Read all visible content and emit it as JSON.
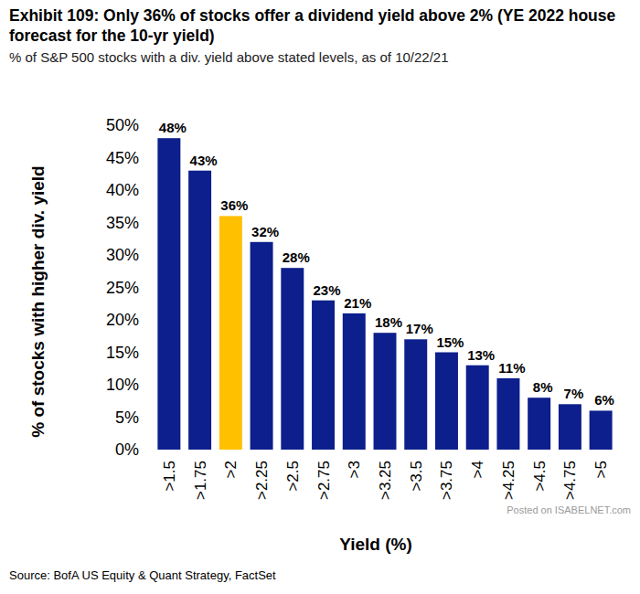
{
  "chart_data": {
    "type": "bar",
    "title": "Exhibit 109: Only 36% of stocks offer a dividend yield above 2% (YE 2022 house forecast for the 10-yr yield)",
    "subtitle": "% of S&P 500 stocks with a div. yield above stated levels, as of 10/22/21",
    "y_label": "% of stocks with higher div. yield",
    "x_label": "Yield (%)",
    "source": "Source: BofA US Equity & Quant Strategy, FactSet",
    "watermark": "Posted on ISABELNET.com",
    "categories": [
      ">1.5",
      ">1.75",
      ">2",
      ">2.25",
      ">2.5",
      ">2.75",
      ">3",
      ">3.25",
      ">3.5",
      ">3.75",
      ">4",
      ">4.25",
      ">4.5",
      ">4.75",
      ">5"
    ],
    "values": [
      48,
      43,
      36,
      32,
      28,
      23,
      21,
      18,
      17,
      15,
      13,
      11,
      8,
      7,
      6
    ],
    "value_labels": [
      "48%",
      "43%",
      "36%",
      "32%",
      "28%",
      "23%",
      "21%",
      "18%",
      "17%",
      "15%",
      "13%",
      "11%",
      "8%",
      "7%",
      "6%"
    ],
    "colors": [
      "#0c1f8c",
      "#0c1f8c",
      "#ffc000",
      "#0c1f8c",
      "#0c1f8c",
      "#0c1f8c",
      "#0c1f8c",
      "#0c1f8c",
      "#0c1f8c",
      "#0c1f8c",
      "#0c1f8c",
      "#0c1f8c",
      "#0c1f8c",
      "#0c1f8c",
      "#0c1f8c"
    ],
    "ylim": [
      0,
      50
    ],
    "yticks": [
      {
        "value": 0,
        "label": "0%"
      },
      {
        "value": 5,
        "label": "5%"
      },
      {
        "value": 10,
        "label": "10%"
      },
      {
        "value": 15,
        "label": "15%"
      },
      {
        "value": 20,
        "label": "20%"
      },
      {
        "value": 25,
        "label": "25%"
      },
      {
        "value": 30,
        "label": "30%"
      },
      {
        "value": 35,
        "label": "35%"
      },
      {
        "value": 40,
        "label": "40%"
      },
      {
        "value": 45,
        "label": "45%"
      },
      {
        "value": 50,
        "label": "50%"
      }
    ],
    "grid": false,
    "data_labels": true
  }
}
